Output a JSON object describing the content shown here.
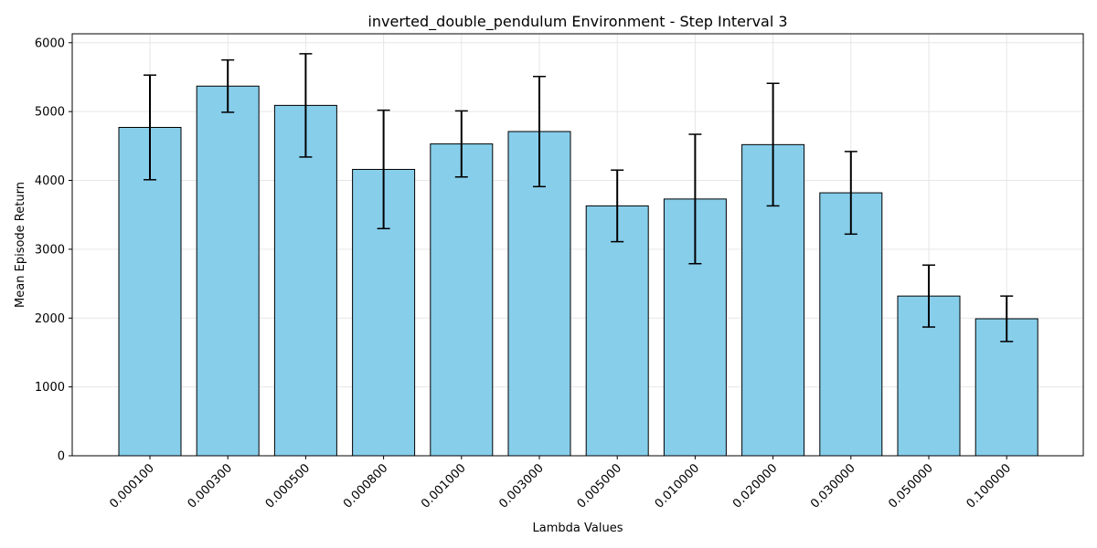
{
  "chart_data": {
    "type": "bar",
    "title": "inverted_double_pendulum Environment - Step Interval 3",
    "xlabel": "Lambda Values",
    "ylabel": "Mean Episode Return",
    "categories": [
      "0.000100",
      "0.000300",
      "0.000500",
      "0.000800",
      "0.001000",
      "0.003000",
      "0.005000",
      "0.010000",
      "0.020000",
      "0.030000",
      "0.050000",
      "0.100000"
    ],
    "values": [
      4770,
      5370,
      5090,
      4160,
      4530,
      4710,
      3630,
      3730,
      4520,
      3820,
      2320,
      1990
    ],
    "errors": [
      760,
      380,
      750,
      860,
      480,
      800,
      520,
      940,
      890,
      600,
      450,
      330
    ],
    "ylim": [
      0,
      6130
    ],
    "yticks": [
      0,
      1000,
      2000,
      3000,
      4000,
      5000,
      6000
    ],
    "grid": true,
    "colors": {
      "bar_fill": "#87ceeb",
      "bar_edge": "#000000",
      "grid": "#e6e6e6",
      "error_bar": "#000000"
    }
  }
}
